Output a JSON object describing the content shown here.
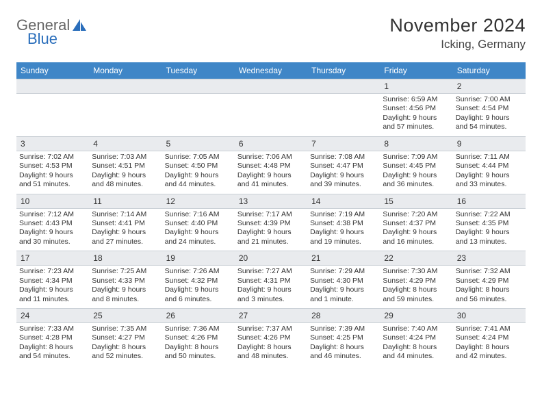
{
  "logo": {
    "text1": "General",
    "text2": "Blue"
  },
  "title": "November 2024",
  "location": "Icking, Germany",
  "colors": {
    "header_bg": "#3f86c7",
    "header_text": "#ffffff",
    "daynum_bg": "#e9ebee",
    "border": "#c9cfd5",
    "body_text": "#333333",
    "logo_accent": "#2a6ebb"
  },
  "day_names": [
    "Sunday",
    "Monday",
    "Tuesday",
    "Wednesday",
    "Thursday",
    "Friday",
    "Saturday"
  ],
  "weeks": [
    [
      null,
      null,
      null,
      null,
      null,
      {
        "n": "1",
        "sunrise": "Sunrise: 6:59 AM",
        "sunset": "Sunset: 4:56 PM",
        "day": "Daylight: 9 hours and 57 minutes."
      },
      {
        "n": "2",
        "sunrise": "Sunrise: 7:00 AM",
        "sunset": "Sunset: 4:54 PM",
        "day": "Daylight: 9 hours and 54 minutes."
      }
    ],
    [
      {
        "n": "3",
        "sunrise": "Sunrise: 7:02 AM",
        "sunset": "Sunset: 4:53 PM",
        "day": "Daylight: 9 hours and 51 minutes."
      },
      {
        "n": "4",
        "sunrise": "Sunrise: 7:03 AM",
        "sunset": "Sunset: 4:51 PM",
        "day": "Daylight: 9 hours and 48 minutes."
      },
      {
        "n": "5",
        "sunrise": "Sunrise: 7:05 AM",
        "sunset": "Sunset: 4:50 PM",
        "day": "Daylight: 9 hours and 44 minutes."
      },
      {
        "n": "6",
        "sunrise": "Sunrise: 7:06 AM",
        "sunset": "Sunset: 4:48 PM",
        "day": "Daylight: 9 hours and 41 minutes."
      },
      {
        "n": "7",
        "sunrise": "Sunrise: 7:08 AM",
        "sunset": "Sunset: 4:47 PM",
        "day": "Daylight: 9 hours and 39 minutes."
      },
      {
        "n": "8",
        "sunrise": "Sunrise: 7:09 AM",
        "sunset": "Sunset: 4:45 PM",
        "day": "Daylight: 9 hours and 36 minutes."
      },
      {
        "n": "9",
        "sunrise": "Sunrise: 7:11 AM",
        "sunset": "Sunset: 4:44 PM",
        "day": "Daylight: 9 hours and 33 minutes."
      }
    ],
    [
      {
        "n": "10",
        "sunrise": "Sunrise: 7:12 AM",
        "sunset": "Sunset: 4:43 PM",
        "day": "Daylight: 9 hours and 30 minutes."
      },
      {
        "n": "11",
        "sunrise": "Sunrise: 7:14 AM",
        "sunset": "Sunset: 4:41 PM",
        "day": "Daylight: 9 hours and 27 minutes."
      },
      {
        "n": "12",
        "sunrise": "Sunrise: 7:16 AM",
        "sunset": "Sunset: 4:40 PM",
        "day": "Daylight: 9 hours and 24 minutes."
      },
      {
        "n": "13",
        "sunrise": "Sunrise: 7:17 AM",
        "sunset": "Sunset: 4:39 PM",
        "day": "Daylight: 9 hours and 21 minutes."
      },
      {
        "n": "14",
        "sunrise": "Sunrise: 7:19 AM",
        "sunset": "Sunset: 4:38 PM",
        "day": "Daylight: 9 hours and 19 minutes."
      },
      {
        "n": "15",
        "sunrise": "Sunrise: 7:20 AM",
        "sunset": "Sunset: 4:37 PM",
        "day": "Daylight: 9 hours and 16 minutes."
      },
      {
        "n": "16",
        "sunrise": "Sunrise: 7:22 AM",
        "sunset": "Sunset: 4:35 PM",
        "day": "Daylight: 9 hours and 13 minutes."
      }
    ],
    [
      {
        "n": "17",
        "sunrise": "Sunrise: 7:23 AM",
        "sunset": "Sunset: 4:34 PM",
        "day": "Daylight: 9 hours and 11 minutes."
      },
      {
        "n": "18",
        "sunrise": "Sunrise: 7:25 AM",
        "sunset": "Sunset: 4:33 PM",
        "day": "Daylight: 9 hours and 8 minutes."
      },
      {
        "n": "19",
        "sunrise": "Sunrise: 7:26 AM",
        "sunset": "Sunset: 4:32 PM",
        "day": "Daylight: 9 hours and 6 minutes."
      },
      {
        "n": "20",
        "sunrise": "Sunrise: 7:27 AM",
        "sunset": "Sunset: 4:31 PM",
        "day": "Daylight: 9 hours and 3 minutes."
      },
      {
        "n": "21",
        "sunrise": "Sunrise: 7:29 AM",
        "sunset": "Sunset: 4:30 PM",
        "day": "Daylight: 9 hours and 1 minute."
      },
      {
        "n": "22",
        "sunrise": "Sunrise: 7:30 AM",
        "sunset": "Sunset: 4:29 PM",
        "day": "Daylight: 8 hours and 59 minutes."
      },
      {
        "n": "23",
        "sunrise": "Sunrise: 7:32 AM",
        "sunset": "Sunset: 4:29 PM",
        "day": "Daylight: 8 hours and 56 minutes."
      }
    ],
    [
      {
        "n": "24",
        "sunrise": "Sunrise: 7:33 AM",
        "sunset": "Sunset: 4:28 PM",
        "day": "Daylight: 8 hours and 54 minutes."
      },
      {
        "n": "25",
        "sunrise": "Sunrise: 7:35 AM",
        "sunset": "Sunset: 4:27 PM",
        "day": "Daylight: 8 hours and 52 minutes."
      },
      {
        "n": "26",
        "sunrise": "Sunrise: 7:36 AM",
        "sunset": "Sunset: 4:26 PM",
        "day": "Daylight: 8 hours and 50 minutes."
      },
      {
        "n": "27",
        "sunrise": "Sunrise: 7:37 AM",
        "sunset": "Sunset: 4:26 PM",
        "day": "Daylight: 8 hours and 48 minutes."
      },
      {
        "n": "28",
        "sunrise": "Sunrise: 7:39 AM",
        "sunset": "Sunset: 4:25 PM",
        "day": "Daylight: 8 hours and 46 minutes."
      },
      {
        "n": "29",
        "sunrise": "Sunrise: 7:40 AM",
        "sunset": "Sunset: 4:24 PM",
        "day": "Daylight: 8 hours and 44 minutes."
      },
      {
        "n": "30",
        "sunrise": "Sunrise: 7:41 AM",
        "sunset": "Sunset: 4:24 PM",
        "day": "Daylight: 8 hours and 42 minutes."
      }
    ]
  ]
}
